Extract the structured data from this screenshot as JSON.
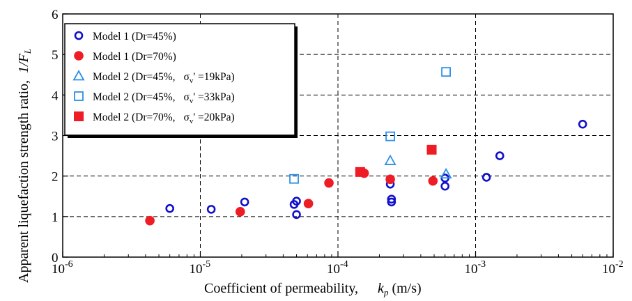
{
  "chart_data": {
    "type": "scatter",
    "xlabel": "Coefficient of permeability,",
    "xlabel_symbol": "k",
    "xlabel_sub": "p",
    "xlabel_unit": " (m/s)",
    "ylabel": "Apparent liquefaction strength ratio,",
    "ylabel_symbol": "1/F",
    "ylabel_sub": "L",
    "x_scale": "log",
    "xlim": [
      1e-06,
      0.01
    ],
    "ylim": [
      0,
      6
    ],
    "grid": true,
    "legend_position": "top-left",
    "x_ticks": [
      {
        "value": 1e-06,
        "base": "10",
        "exp": "-6"
      },
      {
        "value": 1e-05,
        "base": "10",
        "exp": "-5"
      },
      {
        "value": 0.0001,
        "base": "10",
        "exp": "-4"
      },
      {
        "value": 0.001,
        "base": "10",
        "exp": "-3"
      },
      {
        "value": 0.01,
        "base": "10",
        "exp": "-2"
      }
    ],
    "y_ticks": [
      {
        "value": 0,
        "label": "0"
      },
      {
        "value": 1,
        "label": "1"
      },
      {
        "value": 2,
        "label": "2"
      },
      {
        "value": 3,
        "label": "3"
      },
      {
        "value": 4,
        "label": "4"
      },
      {
        "value": 5,
        "label": "5"
      },
      {
        "value": 6,
        "label": "6"
      }
    ],
    "series": [
      {
        "name": "Model 1 (Dr=45%)",
        "marker": "circle-open",
        "color": "#1010cc",
        "points": [
          {
            "x": 6e-06,
            "y": 1.2
          },
          {
            "x": 1.2e-05,
            "y": 1.18
          },
          {
            "x": 2.1e-05,
            "y": 1.36
          },
          {
            "x": 4.8e-05,
            "y": 1.3
          },
          {
            "x": 5e-05,
            "y": 1.38
          },
          {
            "x": 5e-05,
            "y": 1.05
          },
          {
            "x": 0.00024,
            "y": 1.8
          },
          {
            "x": 0.000245,
            "y": 1.43
          },
          {
            "x": 0.000245,
            "y": 1.36
          },
          {
            "x": 0.0006,
            "y": 1.95
          },
          {
            "x": 0.0006,
            "y": 1.75
          },
          {
            "x": 0.0012,
            "y": 1.97
          },
          {
            "x": 0.0015,
            "y": 2.5
          },
          {
            "x": 0.006,
            "y": 3.28
          }
        ]
      },
      {
        "name": "Model 1 (Dr=70%)",
        "marker": "circle-filled",
        "color": "#ee1c24",
        "points": [
          {
            "x": 4.3e-06,
            "y": 0.9
          },
          {
            "x": 1.95e-05,
            "y": 1.12
          },
          {
            "x": 6.1e-05,
            "y": 1.32
          },
          {
            "x": 8.6e-05,
            "y": 1.83
          },
          {
            "x": 0.000155,
            "y": 2.07
          },
          {
            "x": 0.00024,
            "y": 1.92
          },
          {
            "x": 0.00049,
            "y": 1.88
          }
        ]
      },
      {
        "name": "Model 2 (Dr=45%,",
        "name_sigma": "σ",
        "name_sub": "v",
        "name_tail": "' =19kPa)",
        "marker": "triangle-open",
        "color": "#2b8fe8",
        "points": [
          {
            "x": 0.00024,
            "y": 2.38
          },
          {
            "x": 0.00061,
            "y": 2.05
          }
        ]
      },
      {
        "name": "Model 2 (Dr=45%,",
        "name_sigma": "σ",
        "name_sub": "v",
        "name_tail": "' =33kPa)",
        "marker": "square-open",
        "color": "#2b8fe8",
        "points": [
          {
            "x": 4.8e-05,
            "y": 1.93
          },
          {
            "x": 0.00024,
            "y": 2.98
          },
          {
            "x": 0.00061,
            "y": 4.57
          }
        ]
      },
      {
        "name": "Model 2 (Dr=70%,",
        "name_sigma": "σ",
        "name_sub": "v",
        "name_tail": "' =20kPa)",
        "marker": "square-filled",
        "color": "#ee1c24",
        "points": [
          {
            "x": 0.000145,
            "y": 2.1
          },
          {
            "x": 0.00048,
            "y": 2.65
          }
        ]
      }
    ]
  }
}
